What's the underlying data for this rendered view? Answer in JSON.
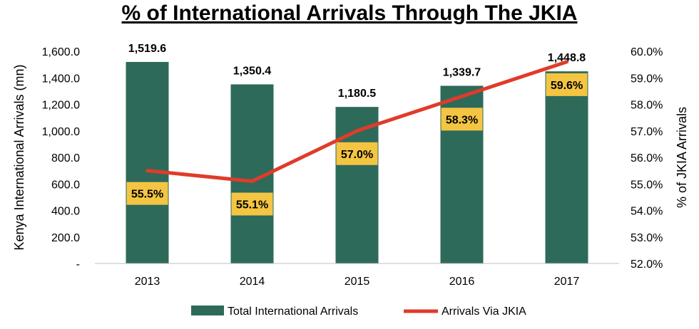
{
  "chart_data": {
    "type": "bar",
    "title": "% of International Arrivals Through The JKIA",
    "categories": [
      "2013",
      "2014",
      "2015",
      "2016",
      "2017"
    ],
    "ylabel": "Kenya International  Arrivals (mn)",
    "y2label": "% of JKIA Arrivals",
    "ylim": [
      0,
      1600
    ],
    "y2lim": [
      52.0,
      60.0
    ],
    "yticks": [
      "-",
      "200.0",
      "400.0",
      "600.0",
      "800.0",
      "1,000.0",
      "1,200.0",
      "1,400.0",
      "1,600.0"
    ],
    "y2ticks": [
      "52.0%",
      "53.0%",
      "54.0%",
      "55.0%",
      "56.0%",
      "57.0%",
      "58.0%",
      "59.0%",
      "60.0%"
    ],
    "series": [
      {
        "name": "Total International Arrivals",
        "type": "bar",
        "axis": "left",
        "values": [
          1519.6,
          1350.4,
          1180.5,
          1339.7,
          1448.8
        ],
        "labels": [
          "1,519.6",
          "1,350.4",
          "1,180.5",
          "1,339.7",
          "1,448.8"
        ],
        "color": "#2d6a5a"
      },
      {
        "name": "Arrivals Via JKIA",
        "type": "line",
        "axis": "right",
        "values": [
          55.5,
          55.1,
          57.0,
          58.3,
          59.6
        ],
        "labels": [
          "55.5%",
          "55.1%",
          "57.0%",
          "58.3%",
          "59.6%"
        ],
        "color": "#e03b2a",
        "label_bg": "#f4c542"
      }
    ],
    "grid": false,
    "legend": "bottom"
  }
}
